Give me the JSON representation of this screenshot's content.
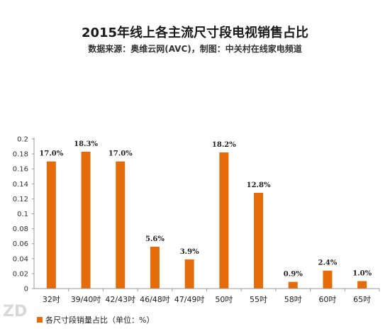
{
  "title": "2015年线上各主流尺寸段电视销售占比",
  "subtitle": "数据来源：奥维云网(AVC)，制图：中关村在线家电频道",
  "watermark": "ZD",
  "colors": {
    "bar": "#E46C0A",
    "axis": "#999999",
    "grid": "#e6e6e6"
  },
  "chart_data": {
    "type": "bar",
    "categories": [
      "32吋",
      "39/40吋",
      "42/43吋",
      "46/48吋",
      "47/49吋",
      "50吋",
      "55吋",
      "58吋",
      "60吋",
      "65吋"
    ],
    "series": [
      {
        "name": "各尺寸段销量占比（单位：%）",
        "values": [
          0.17,
          0.183,
          0.17,
          0.056,
          0.039,
          0.182,
          0.128,
          0.009,
          0.024,
          0.01
        ],
        "labels": [
          "17.0%",
          "18.3%",
          "17.0%",
          "5.6%",
          "3.9%",
          "18.2%",
          "12.8%",
          "0.9%",
          "2.4%",
          "1.0%"
        ]
      }
    ],
    "yticks": [
      "0",
      "0.02",
      "0.04",
      "0.06",
      "0.08",
      "0.1",
      "0.12",
      "0.14",
      "0.16",
      "0.18",
      "0.2"
    ],
    "ylim": [
      0,
      0.2
    ],
    "grid": false,
    "legend_position": "bottom-left"
  }
}
